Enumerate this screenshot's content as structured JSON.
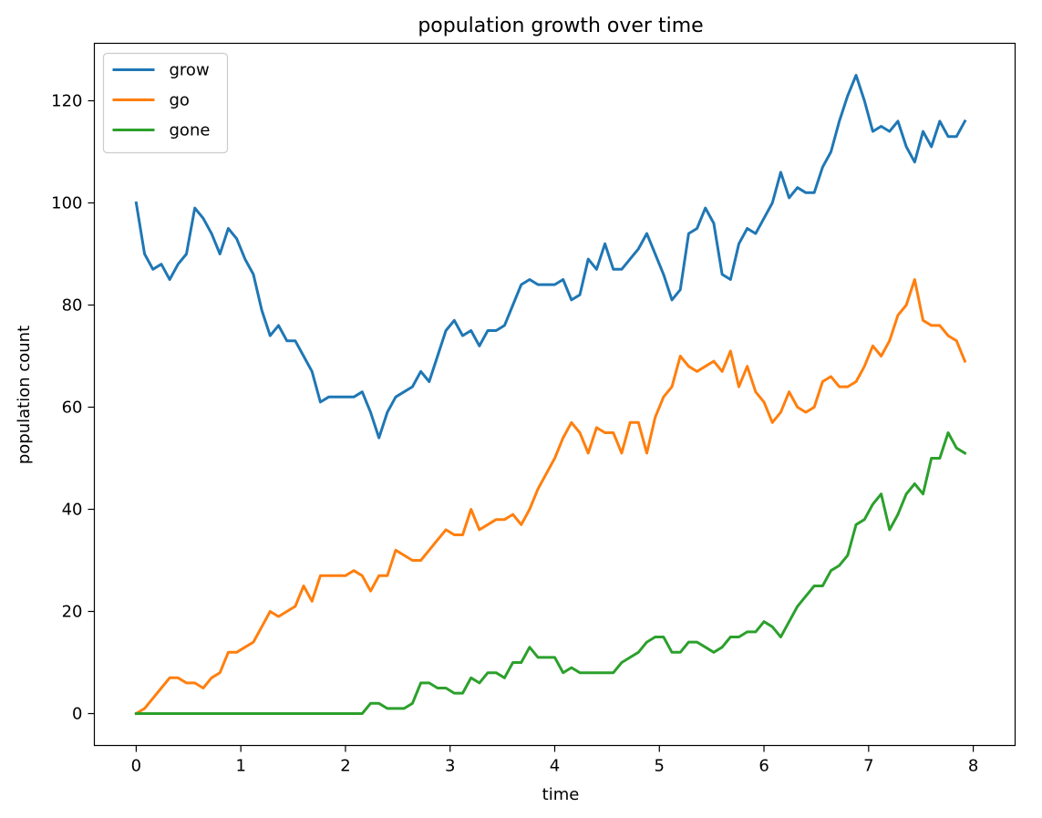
{
  "chart_data": {
    "type": "line",
    "title": "population growth over time",
    "xlabel": "time",
    "ylabel": "population count",
    "xlim": [
      -0.4,
      8.4
    ],
    "ylim": [
      -6.25,
      131.25
    ],
    "xticks": [
      0,
      1,
      2,
      3,
      4,
      5,
      6,
      7,
      8
    ],
    "yticks": [
      0,
      20,
      40,
      60,
      80,
      100,
      120
    ],
    "grid": false,
    "legend_position": "top-left",
    "x_start": 0,
    "x_step": 0.08,
    "series": [
      {
        "name": "grow",
        "color": "#1f77b4",
        "values": [
          100,
          90,
          87,
          88,
          85,
          88,
          90,
          99,
          97,
          94,
          90,
          95,
          93,
          89,
          86,
          79,
          74,
          76,
          73,
          73,
          70,
          67,
          61,
          62,
          62,
          62,
          62,
          63,
          59,
          54,
          59,
          62,
          63,
          64,
          67,
          65,
          70,
          75,
          77,
          74,
          75,
          72,
          75,
          75,
          76,
          80,
          84,
          85,
          84,
          84,
          84,
          85,
          81,
          82,
          89,
          87,
          92,
          87,
          87,
          89,
          91,
          94,
          90,
          86,
          81,
          83,
          94,
          95,
          99,
          96,
          86,
          85,
          92,
          95,
          94,
          97,
          100,
          106,
          101,
          103,
          102,
          102,
          107,
          110,
          116,
          121,
          125,
          120,
          114,
          115,
          114,
          116,
          111,
          108,
          114,
          111,
          116,
          113,
          113,
          116
        ]
      },
      {
        "name": "go",
        "color": "#ff7f0e",
        "values": [
          0,
          1,
          3,
          5,
          7,
          7,
          6,
          6,
          5,
          7,
          8,
          12,
          12,
          13,
          14,
          17,
          20,
          19,
          20,
          21,
          25,
          22,
          27,
          27,
          27,
          27,
          28,
          27,
          24,
          27,
          27,
          32,
          31,
          30,
          30,
          32,
          34,
          36,
          35,
          35,
          40,
          36,
          37,
          38,
          38,
          39,
          37,
          40,
          44,
          47,
          50,
          54,
          57,
          55,
          51,
          56,
          55,
          55,
          51,
          57,
          57,
          51,
          58,
          62,
          64,
          70,
          68,
          67,
          68,
          69,
          67,
          71,
          64,
          68,
          63,
          61,
          57,
          59,
          63,
          60,
          59,
          60,
          65,
          66,
          64,
          64,
          65,
          68,
          72,
          70,
          73,
          78,
          80,
          85,
          77,
          76,
          76,
          74,
          73,
          69
        ]
      },
      {
        "name": "gone",
        "color": "#2ca02c",
        "values": [
          0,
          0,
          0,
          0,
          0,
          0,
          0,
          0,
          0,
          0,
          0,
          0,
          0,
          0,
          0,
          0,
          0,
          0,
          0,
          0,
          0,
          0,
          0,
          0,
          0,
          0,
          0,
          0,
          2,
          2,
          1,
          1,
          1,
          2,
          6,
          6,
          5,
          5,
          4,
          4,
          7,
          6,
          8,
          8,
          7,
          10,
          10,
          13,
          11,
          11,
          11,
          8,
          9,
          8,
          8,
          8,
          8,
          8,
          10,
          11,
          12,
          14,
          15,
          15,
          12,
          12,
          14,
          14,
          13,
          12,
          13,
          15,
          15,
          16,
          16,
          18,
          17,
          15,
          18,
          21,
          23,
          25,
          25,
          28,
          29,
          31,
          37,
          38,
          41,
          43,
          36,
          39,
          43,
          45,
          43,
          50,
          50,
          55,
          52,
          51
        ]
      }
    ]
  }
}
